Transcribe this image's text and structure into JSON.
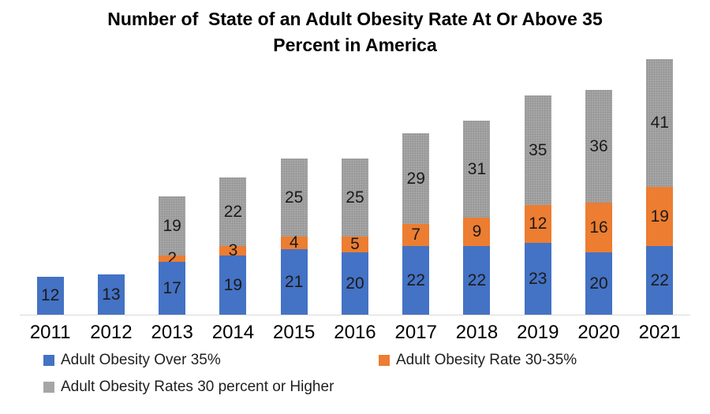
{
  "title": {
    "line1": "Number of  State of an Adult Obesity Rate At Or Above 35",
    "line2": "Percent in America"
  },
  "chart_data": {
    "type": "bar",
    "stacked": true,
    "title": "Number of  State of an Adult Obesity Rate At Or Above 35 Percent in America",
    "xlabel": "",
    "ylabel": "",
    "categories": [
      "2011",
      "2012",
      "2013",
      "2014",
      "2015",
      "2016",
      "2017",
      "2018",
      "2019",
      "2020",
      "2021"
    ],
    "series": [
      {
        "name": "Adult Obesity Over 35%",
        "color": "#4472C4",
        "values": [
          12,
          13,
          17,
          19,
          21,
          20,
          22,
          22,
          23,
          20,
          22
        ]
      },
      {
        "name": "Adult Obesity Rate 30-35%",
        "color": "#ED7D31",
        "values": [
          0,
          0,
          2,
          3,
          4,
          5,
          7,
          9,
          12,
          16,
          19
        ]
      },
      {
        "name": "Adult Obesity Rates 30 percent or Higher",
        "color": "#A6A6A6",
        "values": [
          0,
          0,
          19,
          22,
          25,
          25,
          29,
          31,
          35,
          36,
          41
        ]
      }
    ],
    "totals": [
      12,
      13,
      38,
      44,
      50,
      50,
      58,
      62,
      70,
      72,
      82
    ],
    "ylim": [
      0,
      83
    ],
    "grid": false,
    "data_labels": true,
    "legend_position": "bottom",
    "axis_line_color": "#D9D9D9"
  },
  "legend": {
    "items": [
      {
        "label": "Adult Obesity Over 35%",
        "color": "#4472C4"
      },
      {
        "label": "Adult Obesity Rate 30-35%",
        "color": "#ED7D31"
      },
      {
        "label": "Adult Obesity Rates 30 percent or Higher",
        "color": "#A6A6A6"
      }
    ]
  }
}
